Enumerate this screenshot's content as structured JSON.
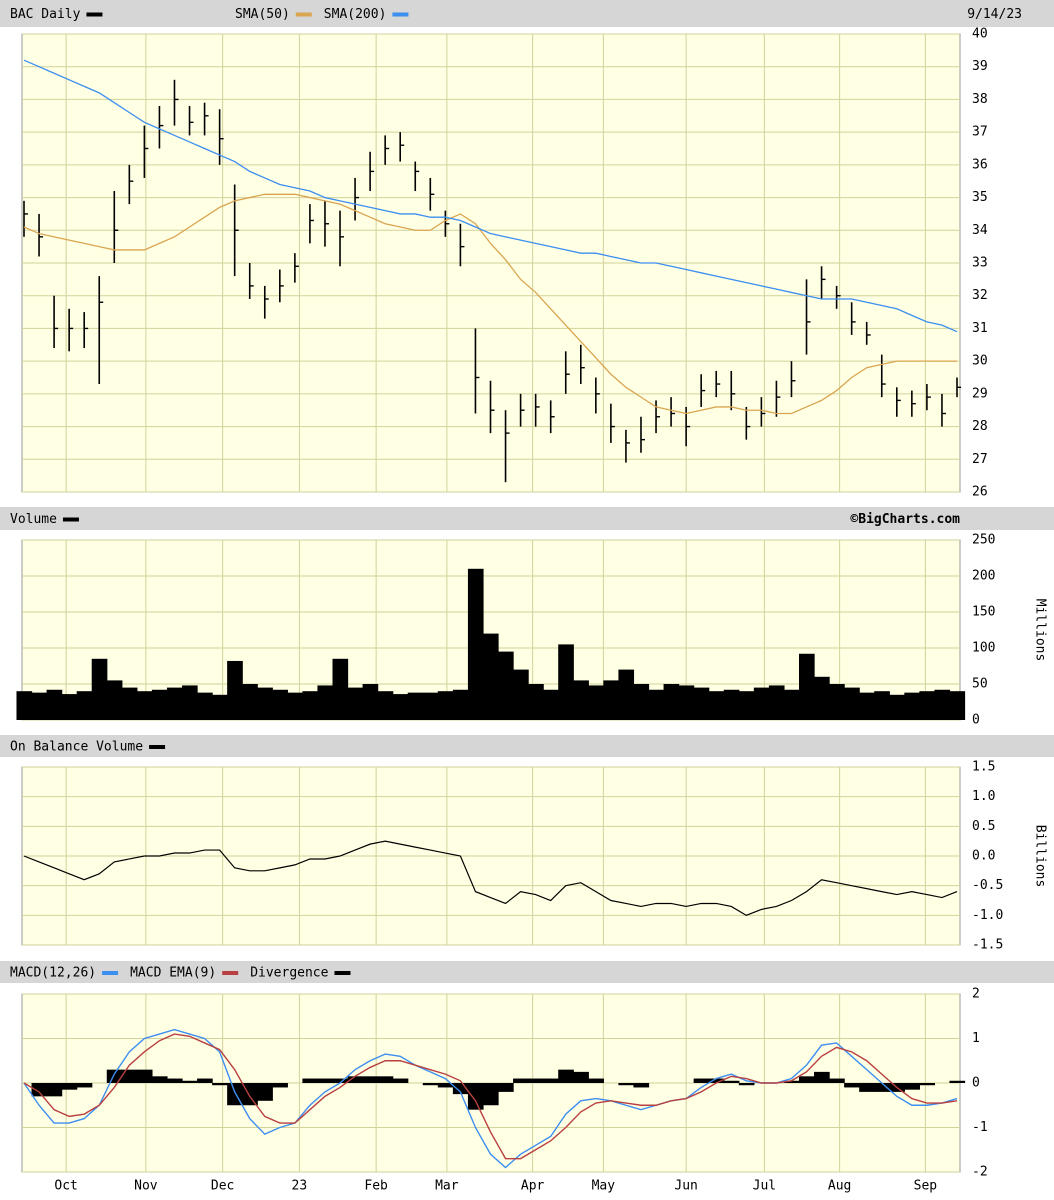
{
  "chart_data": [
    {
      "type": "ohlc",
      "title": "BAC Daily",
      "date": "9/14/23",
      "color": "#000000",
      "ylim": [
        26,
        40
      ],
      "yticks": [
        26,
        27,
        28,
        29,
        30,
        31,
        32,
        33,
        34,
        35,
        36,
        37,
        38,
        39,
        40
      ],
      "high": [
        34.9,
        34.5,
        32.0,
        31.6,
        31.5,
        32.6,
        35.2,
        36.0,
        37.2,
        37.8,
        38.6,
        37.8,
        37.9,
        37.7,
        35.4,
        33.0,
        32.3,
        32.8,
        33.3,
        34.8,
        34.9,
        34.6,
        35.6,
        36.4,
        36.9,
        37.0,
        36.1,
        35.6,
        34.6,
        34.2,
        31.0,
        29.4,
        28.5,
        29.0,
        29.0,
        28.8,
        30.3,
        30.5,
        29.5,
        28.7,
        27.9,
        28.3,
        28.8,
        28.9,
        28.6,
        29.6,
        29.7,
        29.7,
        28.6,
        28.9,
        29.4,
        30.0,
        32.5,
        32.9,
        32.3,
        31.8,
        31.2,
        30.2,
        29.2,
        29.1,
        29.3,
        29.0,
        29.5
      ],
      "low": [
        33.8,
        33.2,
        30.4,
        30.3,
        30.4,
        29.3,
        33.0,
        34.8,
        35.6,
        36.5,
        37.2,
        36.9,
        36.9,
        36.0,
        32.6,
        31.9,
        31.3,
        31.8,
        32.4,
        33.6,
        33.5,
        32.9,
        34.3,
        35.2,
        36.0,
        36.1,
        35.2,
        34.6,
        33.8,
        32.9,
        28.4,
        27.8,
        26.3,
        28.0,
        28.0,
        27.8,
        29.0,
        29.3,
        28.4,
        27.5,
        26.9,
        27.2,
        27.8,
        28.0,
        27.4,
        28.6,
        28.9,
        28.5,
        27.6,
        28.0,
        28.3,
        28.9,
        30.2,
        31.9,
        31.6,
        30.8,
        30.5,
        28.9,
        28.3,
        28.3,
        28.5,
        28.0,
        28.9
      ],
      "close": [
        34.5,
        33.8,
        31.0,
        31.0,
        31.0,
        31.8,
        34.0,
        35.5,
        36.5,
        37.2,
        38.0,
        37.3,
        37.5,
        36.8,
        34.0,
        32.3,
        31.9,
        32.3,
        32.9,
        34.3,
        34.2,
        33.8,
        35.0,
        35.8,
        36.5,
        36.6,
        35.8,
        35.1,
        34.2,
        33.5,
        29.5,
        28.5,
        27.8,
        28.5,
        28.6,
        28.3,
        29.6,
        29.8,
        29.0,
        28.0,
        27.5,
        27.6,
        28.3,
        28.4,
        28.0,
        29.1,
        29.3,
        29.0,
        28.0,
        28.4,
        28.9,
        29.4,
        31.2,
        32.5,
        32.0,
        31.2,
        30.8,
        29.3,
        28.8,
        28.7,
        28.9,
        28.4,
        29.2
      ],
      "series": [
        {
          "name": "SMA(50)",
          "color": "#d9a550",
          "values": [
            34.1,
            33.9,
            33.8,
            33.7,
            33.6,
            33.5,
            33.4,
            33.4,
            33.4,
            33.6,
            33.8,
            34.1,
            34.4,
            34.7,
            34.9,
            35.0,
            35.1,
            35.1,
            35.1,
            35.0,
            34.9,
            34.8,
            34.6,
            34.4,
            34.2,
            34.1,
            34.0,
            34.0,
            34.3,
            34.5,
            34.2,
            33.6,
            33.1,
            32.5,
            32.1,
            31.6,
            31.1,
            30.6,
            30.1,
            29.6,
            29.2,
            28.9,
            28.6,
            28.5,
            28.4,
            28.5,
            28.6,
            28.6,
            28.5,
            28.5,
            28.4,
            28.4,
            28.6,
            28.8,
            29.1,
            29.5,
            29.8,
            29.9,
            30.0,
            30.0,
            30.0,
            30.0,
            30.0
          ]
        },
        {
          "name": "SMA(200)",
          "color": "#3c8ef0",
          "values": [
            39.2,
            39.0,
            38.8,
            38.6,
            38.4,
            38.2,
            37.9,
            37.6,
            37.3,
            37.1,
            36.9,
            36.7,
            36.5,
            36.3,
            36.1,
            35.8,
            35.6,
            35.4,
            35.3,
            35.2,
            35.0,
            34.9,
            34.8,
            34.7,
            34.6,
            34.5,
            34.5,
            34.4,
            34.4,
            34.3,
            34.1,
            33.9,
            33.8,
            33.7,
            33.6,
            33.5,
            33.4,
            33.3,
            33.3,
            33.2,
            33.1,
            33.0,
            33.0,
            32.9,
            32.8,
            32.7,
            32.6,
            32.5,
            32.4,
            32.3,
            32.2,
            32.1,
            32.0,
            31.9,
            31.9,
            31.9,
            31.8,
            31.7,
            31.6,
            31.4,
            31.2,
            31.1,
            30.9
          ]
        }
      ]
    },
    {
      "type": "area",
      "title": "Volume",
      "source": "©BigCharts.com",
      "ylabel": "Millions",
      "color": "#000000",
      "ylim": [
        0,
        250
      ],
      "yticks": [
        0,
        50,
        100,
        150,
        200,
        250
      ],
      "values": [
        40,
        38,
        42,
        36,
        40,
        85,
        55,
        45,
        40,
        42,
        45,
        48,
        38,
        35,
        82,
        50,
        45,
        42,
        38,
        40,
        48,
        85,
        45,
        50,
        40,
        36,
        38,
        38,
        40,
        42,
        210,
        120,
        95,
        70,
        50,
        42,
        105,
        55,
        48,
        55,
        70,
        50,
        42,
        50,
        48,
        45,
        40,
        42,
        40,
        45,
        48,
        42,
        92,
        60,
        50,
        45,
        38,
        40,
        35,
        38,
        40,
        42,
        40
      ]
    },
    {
      "type": "line",
      "title": "On Balance Volume",
      "ylabel": "Billions",
      "color": "#000000",
      "ylim": [
        -1.5,
        1.5
      ],
      "yticks": [
        1.5,
        {
          "value": 1.0,
          "label": "1.0"
        },
        0.5,
        {
          "value": 0,
          "label": "0.0"
        },
        -0.5,
        {
          "value": -1.0,
          "label": "-1.0"
        },
        -1.5
      ],
      "values": [
        0,
        -0.1,
        -0.2,
        -0.3,
        -0.4,
        -0.3,
        -0.1,
        -0.05,
        0,
        0,
        0.05,
        0.05,
        0.1,
        0.1,
        -0.2,
        -0.25,
        -0.25,
        -0.2,
        -0.15,
        -0.05,
        -0.05,
        0,
        0.1,
        0.2,
        0.25,
        0.2,
        0.15,
        0.1,
        0.05,
        0,
        -0.6,
        -0.7,
        -0.8,
        -0.6,
        -0.65,
        -0.75,
        -0.5,
        -0.45,
        -0.6,
        -0.75,
        -0.8,
        -0.85,
        -0.8,
        -0.8,
        -0.85,
        -0.8,
        -0.8,
        -0.85,
        -1.0,
        -0.9,
        -0.85,
        -0.75,
        -0.6,
        -0.4,
        -0.45,
        -0.5,
        -0.55,
        -0.6,
        -0.65,
        -0.6,
        -0.65,
        -0.7,
        -0.6
      ]
    },
    {
      "type": "macd",
      "ylim": [
        -2,
        2
      ],
      "yticks": [
        -2,
        -1,
        0,
        1,
        2
      ],
      "xlim": [
        0,
        62
      ],
      "xticks": [
        {
          "value": 2.8,
          "label": "Oct"
        },
        {
          "value": 8.1,
          "label": "Nov"
        },
        {
          "value": 13.2,
          "label": "Dec"
        },
        {
          "value": 18.3,
          "label": "23"
        },
        {
          "value": 23.4,
          "label": "Feb"
        },
        {
          "value": 28.1,
          "label": "Mar"
        },
        {
          "value": 33.8,
          "label": "Apr"
        },
        {
          "value": 38.5,
          "label": "May"
        },
        {
          "value": 44.0,
          "label": "Jun"
        },
        {
          "value": 49.2,
          "label": "Jul"
        },
        {
          "value": 54.2,
          "label": "Aug"
        },
        {
          "value": 59.9,
          "label": "Sep"
        }
      ],
      "series": [
        {
          "name": "MACD(12,26)",
          "color": "#3c8ef0",
          "values": [
            0,
            -0.5,
            -0.9,
            -0.9,
            -0.8,
            -0.5,
            0.2,
            0.7,
            1.0,
            1.1,
            1.2,
            1.1,
            1.0,
            0.7,
            -0.2,
            -0.8,
            -1.15,
            -1.0,
            -0.9,
            -0.5,
            -0.2,
            0,
            0.3,
            0.5,
            0.65,
            0.6,
            0.4,
            0.25,
            0.1,
            -0.2,
            -1.0,
            -1.6,
            -1.9,
            -1.6,
            -1.4,
            -1.2,
            -0.7,
            -0.4,
            -0.35,
            -0.4,
            -0.5,
            -0.6,
            -0.5,
            -0.4,
            -0.35,
            -0.1,
            0.1,
            0.2,
            0.05,
            0,
            0,
            0.1,
            0.4,
            0.85,
            0.9,
            0.6,
            0.3,
            0,
            -0.3,
            -0.5,
            -0.5,
            -0.45,
            -0.35
          ]
        },
        {
          "name": "MACD EMA(9)",
          "color": "#b84040",
          "values": [
            0,
            -0.2,
            -0.6,
            -0.75,
            -0.7,
            -0.5,
            -0.1,
            0.4,
            0.7,
            0.95,
            1.1,
            1.05,
            0.9,
            0.75,
            0.3,
            -0.3,
            -0.75,
            -0.9,
            -0.9,
            -0.6,
            -0.3,
            -0.1,
            0.15,
            0.35,
            0.5,
            0.5,
            0.4,
            0.3,
            0.2,
            0.05,
            -0.4,
            -1.1,
            -1.7,
            -1.7,
            -1.5,
            -1.3,
            -1.0,
            -0.65,
            -0.45,
            -0.4,
            -0.45,
            -0.5,
            -0.5,
            -0.4,
            -0.35,
            -0.2,
            0,
            0.15,
            0.1,
            0,
            0,
            0.05,
            0.25,
            0.6,
            0.8,
            0.7,
            0.5,
            0.2,
            -0.1,
            -0.35,
            -0.45,
            -0.45,
            -0.4
          ]
        },
        {
          "name": "Divergence",
          "color": "#000000",
          "style": "histogram",
          "values": [
            0,
            -0.3,
            -0.3,
            -0.15,
            -0.1,
            0,
            0.3,
            0.3,
            0.3,
            0.15,
            0.1,
            0.05,
            0.1,
            -0.05,
            -0.5,
            -0.5,
            -0.4,
            -0.1,
            0,
            0.1,
            0.1,
            0.1,
            0.15,
            0.15,
            0.15,
            0.1,
            0,
            -0.05,
            -0.1,
            -0.25,
            -0.6,
            -0.5,
            -0.2,
            0.1,
            0.1,
            0.1,
            0.3,
            0.25,
            0.1,
            0,
            -0.05,
            -0.1,
            0,
            0,
            0,
            0.1,
            0.1,
            0.05,
            -0.05,
            0,
            0,
            0.05,
            0.15,
            0.25,
            0.1,
            -0.1,
            -0.2,
            -0.2,
            -0.2,
            -0.15,
            -0.05,
            0,
            0.05
          ]
        }
      ]
    }
  ]
}
